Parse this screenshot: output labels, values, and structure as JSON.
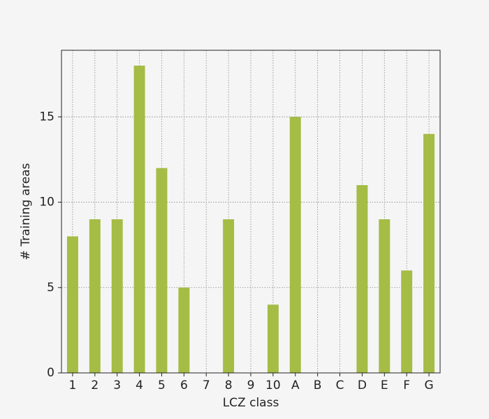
{
  "chart_data": {
    "type": "bar",
    "x_label": "LCZ class",
    "y_label": "# Training areas",
    "categories": [
      "1",
      "2",
      "3",
      "4",
      "5",
      "6",
      "7",
      "8",
      "9",
      "10",
      "A",
      "B",
      "C",
      "D",
      "E",
      "F",
      "G"
    ],
    "values": [
      8,
      9,
      9,
      18,
      12,
      5,
      0,
      9,
      0,
      4,
      15,
      0,
      0,
      11,
      9,
      6,
      14
    ],
    "color": "#a5bc45",
    "ylim": [
      0,
      18.9
    ],
    "yticks": [
      0,
      5,
      10,
      15
    ],
    "grid": true
  }
}
